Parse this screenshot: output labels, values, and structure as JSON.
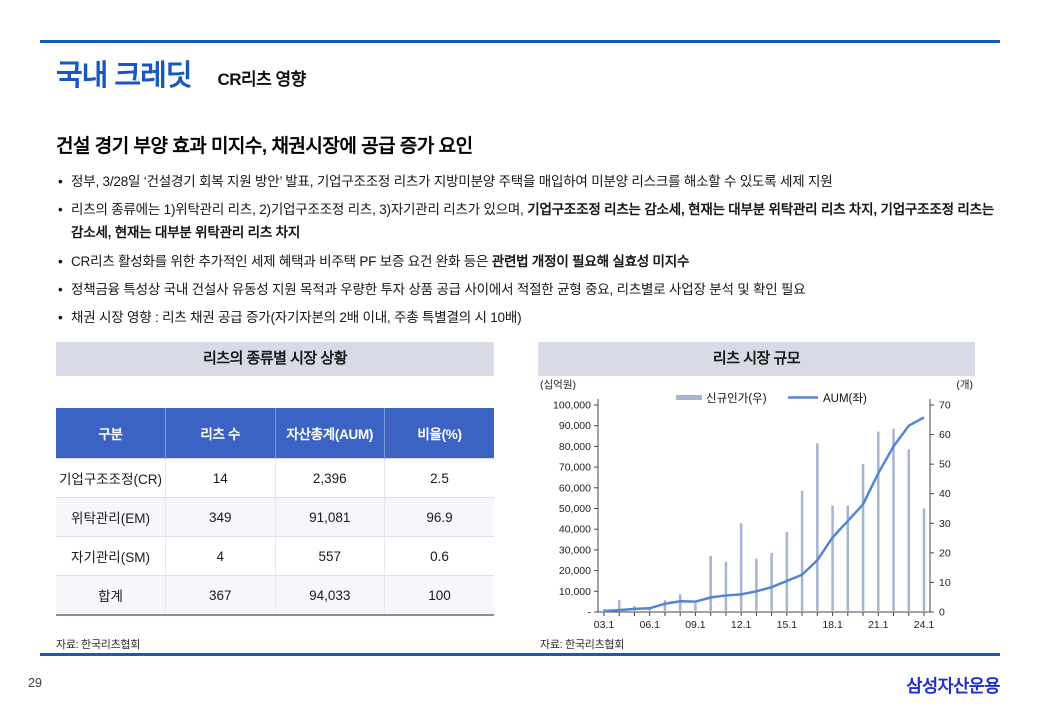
{
  "header": {
    "title": "국내 크레딧",
    "subtitle": "CR리츠 영향"
  },
  "section": {
    "heading": "건설 경기 부양 효과 미지수, 채권시장에 공급 증가 요인"
  },
  "bullets": [
    {
      "plain": "정부, 3/28일 ‘건설경기 회복 지원 방안’ 발표, 기업구조조정 리츠가 지방미분양 주택을 매입하여 미분양 리스크를 해소할 수 있도록 세제 지원",
      "bold": ""
    },
    {
      "plain": "리츠의 종류에는 1)위탁관리 리츠, 2)기업구조조정 리츠, 3)자기관리 리츠가 있으며, ",
      "bold": "기업구조조정 리츠는 감소세, 현재는 대부분 위탁관리 리츠 차지, 기업구조조정 리츠는 감소세, 현재는 대부분 위탁관리 리츠 차지"
    },
    {
      "plain": "CR리츠 활성화를 위한 추가적인 세제 혜택과 비주택 PF 보증 요건 완화 등은 ",
      "bold": "관련법 개정이 필요해 실효성 미지수"
    },
    {
      "plain": "정책금융 특성상 국내 건설사 유동성 지원 목적과 우량한 투자 상품 공급 사이에서 적절한 균형 중요, 리츠별로 사업장 분석 및 확인 필요",
      "bold": ""
    },
    {
      "plain": "채권 시장 영향 : 리츠 채권 공급 증가(자기자본의 2배 이내, 주총 특별결의 시 10배)",
      "bold": ""
    }
  ],
  "left_panel": {
    "title": "리츠의 종류별 시장 상황",
    "source": "자료: 한국리츠협회",
    "table": {
      "headers": [
        "구분",
        "리츠 수",
        "자산총계(AUM)",
        "비율(%)"
      ],
      "rows": [
        [
          "기업구조조정(CR)",
          "14",
          "2,396",
          "2.5"
        ],
        [
          "위탁관리(EM)",
          "349",
          "91,081",
          "96.9"
        ],
        [
          "자기관리(SM)",
          "4",
          "557",
          "0.6"
        ],
        [
          "합계",
          "367",
          "94,033",
          "100"
        ]
      ]
    }
  },
  "right_panel": {
    "title": "리츠 시장 규모",
    "source": "자료: 한국리츠협회"
  },
  "chart_data": {
    "type": "bar",
    "title": "리츠 시장 규모",
    "x": [
      "03.1",
      "04.1",
      "05.1",
      "06.1",
      "07.1",
      "08.1",
      "09.1",
      "10.1",
      "11.1",
      "12.1",
      "13.1",
      "14.1",
      "15.1",
      "16.1",
      "17.1",
      "18.1",
      "19.1",
      "20.1",
      "21.1",
      "22.1",
      "23.1",
      "24.1"
    ],
    "x_label_indices": [
      0,
      3,
      6,
      9,
      12,
      15,
      18,
      21
    ],
    "left_axis": {
      "unit": "(십억원)",
      "min": 0,
      "max": 100000,
      "tick_step": 10000,
      "ticks": [
        "-",
        "10,000",
        "20,000",
        "30,000",
        "40,000",
        "50,000",
        "60,000",
        "70,000",
        "80,000",
        "90,000",
        "100,000"
      ]
    },
    "right_axis": {
      "unit": "(개)",
      "min": 0,
      "max": 70,
      "tick_step": 10,
      "ticks": [
        "0",
        "10",
        "20",
        "30",
        "40",
        "50",
        "60",
        "70"
      ]
    },
    "series": [
      {
        "name": "신규인가(우)",
        "type": "bar",
        "axis": "right",
        "values": [
          1,
          4,
          2,
          1,
          4,
          6,
          3,
          19,
          17,
          30,
          18,
          20,
          27,
          41,
          57,
          36,
          36,
          50,
          61,
          62,
          55,
          35
        ]
      },
      {
        "name": "AUM(좌)",
        "type": "line",
        "axis": "left",
        "values": [
          500,
          900,
          1500,
          1800,
          4000,
          5200,
          5000,
          7000,
          8000,
          8500,
          10000,
          12000,
          15000,
          18000,
          25000,
          36000,
          44000,
          52000,
          67000,
          80000,
          90000,
          94033
        ]
      }
    ],
    "legend_position": "top-center",
    "grid": false
  },
  "footer": {
    "page_number": "29",
    "logo": "삼성자산운용"
  },
  "colors": {
    "accent_blue": "#1856C1",
    "table_header": "#3A63C4",
    "panel_header_bg": "#D8DBE6",
    "bar": "#A6B3D1",
    "line": "#5585D2",
    "logo_blue": "#1F2FC9"
  }
}
